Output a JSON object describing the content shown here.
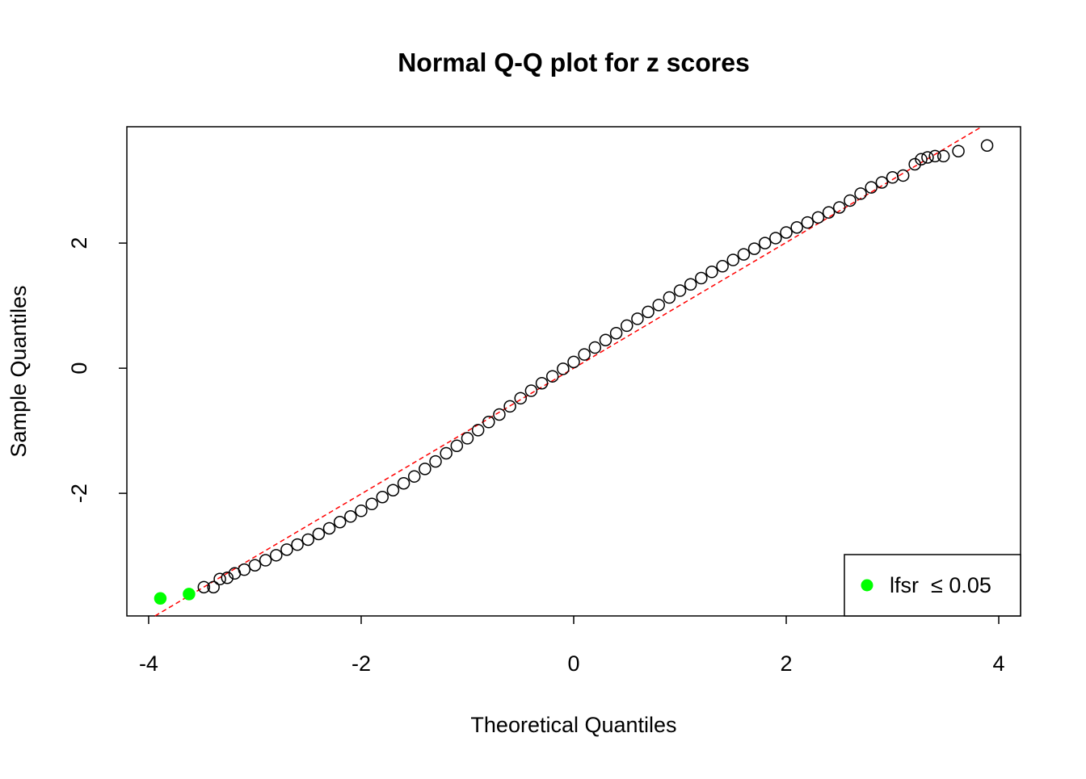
{
  "chart_data": {
    "type": "scatter",
    "title": "Normal Q-Q plot for z scores",
    "xlabel": "Theoretical Quantiles",
    "ylabel": "Sample Quantiles",
    "xlim": [
      -4.205,
      4.205
    ],
    "ylim": [
      -3.96,
      3.86
    ],
    "xticks": [
      -4,
      -2,
      0,
      2,
      4
    ],
    "yticks": [
      -2,
      0,
      2
    ],
    "legend": "bottomright",
    "reference_line": {
      "x": [
        -3.94,
        3.84
      ],
      "y": [
        -3.96,
        3.86
      ],
      "color": "#ff0000"
    },
    "series": [
      {
        "color": "#000000",
        "x": [
          -3.48,
          -3.39,
          -3.33,
          -3.26,
          -3.19,
          -3.1,
          -3.0,
          -2.9,
          -2.8,
          -2.7,
          -2.6,
          -2.5,
          -2.4,
          -2.3,
          -2.2,
          -2.1,
          -2.0,
          -1.9,
          -1.8,
          -1.7,
          -1.6,
          -1.5,
          -1.4,
          -1.3,
          -1.2,
          -1.1,
          -1.0,
          -0.9,
          -0.8,
          -0.7,
          -0.6,
          -0.5,
          -0.4,
          -0.3,
          -0.2,
          -0.1,
          0,
          0.1,
          0.2,
          0.3,
          0.4,
          0.5,
          0.6,
          0.7,
          0.8,
          0.9,
          1.0,
          1.1,
          1.2,
          1.3,
          1.4,
          1.5,
          1.6,
          1.7,
          1.8,
          1.9,
          2.0,
          2.1,
          2.2,
          2.3,
          2.4,
          2.5,
          2.6,
          2.7,
          2.8,
          2.9,
          3.0,
          3.1,
          3.21,
          3.27,
          3.33,
          3.4,
          3.48,
          3.62,
          3.89
        ],
        "values": [
          -3.5,
          -3.5,
          -3.37,
          -3.35,
          -3.28,
          -3.22,
          -3.15,
          -3.07,
          -2.99,
          -2.9,
          -2.82,
          -2.74,
          -2.65,
          -2.56,
          -2.46,
          -2.37,
          -2.28,
          -2.17,
          -2.06,
          -1.95,
          -1.84,
          -1.73,
          -1.61,
          -1.49,
          -1.36,
          -1.24,
          -1.12,
          -0.99,
          -0.86,
          -0.74,
          -0.61,
          -0.48,
          -0.36,
          -0.24,
          -0.13,
          -0.01,
          0.1,
          0.22,
          0.33,
          0.45,
          0.56,
          0.68,
          0.79,
          0.9,
          1.01,
          1.13,
          1.24,
          1.34,
          1.44,
          1.54,
          1.63,
          1.73,
          1.82,
          1.91,
          2.0,
          2.08,
          2.17,
          2.25,
          2.33,
          2.41,
          2.49,
          2.57,
          2.68,
          2.79,
          2.89,
          2.97,
          3.05,
          3.08,
          3.26,
          3.34,
          3.37,
          3.39,
          3.39,
          3.47,
          3.56
        ]
      },
      {
        "name": "lfsr  ≤ 0.05",
        "color": "#00ff00",
        "x": [
          -3.89,
          -3.62
        ],
        "values": [
          -3.68,
          -3.61
        ]
      }
    ]
  }
}
